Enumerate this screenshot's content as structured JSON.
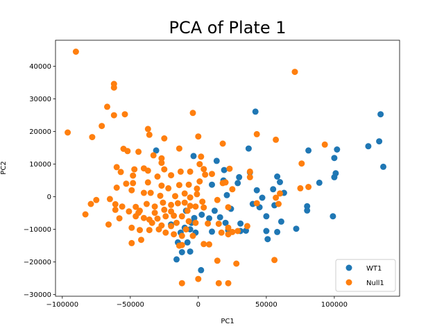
{
  "chart_data": {
    "type": "scatter",
    "title": "PCA of Plate 1",
    "xlabel": "PC1",
    "ylabel": "PC2",
    "xlim": [
      -105000,
      148000
    ],
    "ylim": [
      -30500,
      48000
    ],
    "xticks": [
      -100000,
      -50000,
      0,
      50000,
      100000
    ],
    "xtick_labels": [
      "−100000",
      "−50000",
      "0",
      "50000",
      "100000"
    ],
    "yticks": [
      -30000,
      -20000,
      -10000,
      0,
      10000,
      20000,
      30000,
      40000
    ],
    "ytick_labels": [
      "−30000",
      "−20000",
      "−10000",
      "0",
      "10000",
      "20000",
      "30000",
      "40000"
    ],
    "grid": false,
    "legend_position": "lower right",
    "series": [
      {
        "name": "WT1",
        "color": "#1f77b4",
        "points": [
          [
            -31000,
            14200
          ],
          [
            -3500,
            12500
          ],
          [
            13500,
            11000
          ],
          [
            19000,
            8200
          ],
          [
            30000,
            6000
          ],
          [
            37000,
            14800
          ],
          [
            42000,
            26100
          ],
          [
            38000,
            7500
          ],
          [
            29000,
            4200
          ],
          [
            18500,
            5000
          ],
          [
            43000,
            2000
          ],
          [
            58000,
            6200
          ],
          [
            60000,
            4500
          ],
          [
            63000,
            1200
          ],
          [
            55000,
            2300
          ],
          [
            47000,
            -300
          ],
          [
            40000,
            -2200
          ],
          [
            45000,
            -3200
          ],
          [
            56000,
            -2600
          ],
          [
            50000,
            -6000
          ],
          [
            61000,
            -7600
          ],
          [
            58000,
            -10800
          ],
          [
            50000,
            -10500
          ],
          [
            51000,
            -13000
          ],
          [
            72000,
            -9800
          ],
          [
            80000,
            -2900
          ],
          [
            80000,
            -4200
          ],
          [
            81000,
            14200
          ],
          [
            89000,
            4300
          ],
          [
            99000,
            -6000
          ],
          [
            100000,
            6000
          ],
          [
            101000,
            7200
          ],
          [
            100000,
            11900
          ],
          [
            102000,
            14500
          ],
          [
            125000,
            15500
          ],
          [
            133000,
            17000
          ],
          [
            136000,
            9200
          ],
          [
            134000,
            25300
          ],
          [
            16000,
            -6300
          ],
          [
            20000,
            -8000
          ],
          [
            24000,
            -3700
          ],
          [
            12000,
            -4300
          ],
          [
            31000,
            -8200
          ],
          [
            31000,
            -10500
          ],
          [
            35000,
            -10400
          ],
          [
            22000,
            -10300
          ],
          [
            8000,
            -6600
          ],
          [
            2500,
            -5500
          ],
          [
            -3000,
            -6500
          ],
          [
            -10000,
            -9500
          ],
          [
            -13000,
            -11000
          ],
          [
            -20000,
            -8500
          ],
          [
            -15000,
            -14000
          ],
          [
            -8000,
            -14000
          ],
          [
            -6000,
            -16800
          ],
          [
            -12000,
            -17000
          ],
          [
            -16000,
            -19200
          ],
          [
            2000,
            -22500
          ],
          [
            -6000,
            -10000
          ],
          [
            -2000,
            -11000
          ],
          [
            10000,
            -10700
          ],
          [
            21000,
            500
          ],
          [
            10000,
            3700
          ],
          [
            -5000,
            -8000
          ],
          [
            -9000,
            -4300
          ]
        ]
      },
      {
        "name": "Null1",
        "color": "#ff7f0e",
        "points": [
          [
            -90000,
            44500
          ],
          [
            -62000,
            34600
          ],
          [
            -62000,
            33500
          ],
          [
            -67000,
            27600
          ],
          [
            -62000,
            25000
          ],
          [
            -54000,
            25300
          ],
          [
            -71000,
            21700
          ],
          [
            -96000,
            19700
          ],
          [
            -78000,
            18300
          ],
          [
            -37000,
            20800
          ],
          [
            -36000,
            19000
          ],
          [
            -25000,
            17900
          ],
          [
            -4000,
            25700
          ],
          [
            0,
            18500
          ],
          [
            43000,
            19200
          ],
          [
            71000,
            38300
          ],
          [
            57000,
            17500
          ],
          [
            18000,
            16300
          ],
          [
            93000,
            16000
          ],
          [
            -55000,
            14700
          ],
          [
            -52000,
            14000
          ],
          [
            -44000,
            13800
          ],
          [
            -33000,
            12700
          ],
          [
            -27000,
            11800
          ],
          [
            -27000,
            10400
          ],
          [
            -14000,
            14800
          ],
          [
            2000,
            12300
          ],
          [
            1000,
            10000
          ],
          [
            4000,
            8500
          ],
          [
            10000,
            7000
          ],
          [
            -60000,
            9100
          ],
          [
            -57000,
            7600
          ],
          [
            -47000,
            8400
          ],
          [
            -48000,
            6500
          ],
          [
            -40000,
            8700
          ],
          [
            -37000,
            8000
          ],
          [
            -25000,
            8400
          ],
          [
            -30000,
            6200
          ],
          [
            -20000,
            6600
          ],
          [
            -13000,
            7700
          ],
          [
            -6000,
            7700
          ],
          [
            5000,
            6800
          ],
          [
            23000,
            8600
          ],
          [
            38000,
            7700
          ],
          [
            38000,
            6000
          ],
          [
            -53000,
            4000
          ],
          [
            -60000,
            2800
          ],
          [
            -49000,
            2000
          ],
          [
            -48000,
            4200
          ],
          [
            -37000,
            4400
          ],
          [
            -27000,
            3400
          ],
          [
            -22000,
            2600
          ],
          [
            -14000,
            3600
          ],
          [
            -7000,
            3700
          ],
          [
            -1000,
            2500
          ],
          [
            1000,
            4700
          ],
          [
            18000,
            4200
          ],
          [
            20000,
            4400
          ],
          [
            25000,
            2300
          ],
          [
            76000,
            10200
          ],
          [
            75000,
            2600
          ],
          [
            81000,
            3000
          ],
          [
            60000,
            1000
          ],
          [
            57000,
            -300
          ],
          [
            59000,
            -2200
          ],
          [
            43000,
            -2000
          ],
          [
            -75000,
            -1000
          ],
          [
            -65000,
            -700
          ],
          [
            -61000,
            -2300
          ],
          [
            -56000,
            -3000
          ],
          [
            -51000,
            -4500
          ],
          [
            -46000,
            -3100
          ],
          [
            -43000,
            -4300
          ],
          [
            -38000,
            -2200
          ],
          [
            -32000,
            -3000
          ],
          [
            -26000,
            -1800
          ],
          [
            -20000,
            -2500
          ],
          [
            -15000,
            -2000
          ],
          [
            -10000,
            -1800
          ],
          [
            -6000,
            -2800
          ],
          [
            -2000,
            -3000
          ],
          [
            4000,
            -3300
          ],
          [
            22000,
            -3200
          ],
          [
            -79000,
            -2200
          ],
          [
            -83000,
            -5400
          ],
          [
            -61000,
            -4000
          ],
          [
            -58000,
            -6600
          ],
          [
            -46000,
            -6000
          ],
          [
            -40000,
            -6500
          ],
          [
            -36000,
            -7000
          ],
          [
            -30000,
            -6700
          ],
          [
            -24000,
            -6000
          ],
          [
            -18000,
            -5800
          ],
          [
            -12000,
            -6000
          ],
          [
            -7000,
            -7500
          ],
          [
            -2000,
            -8000
          ],
          [
            7000,
            -8200
          ],
          [
            15000,
            -8300
          ],
          [
            22000,
            -9500
          ],
          [
            29000,
            -10500
          ],
          [
            36000,
            -9000
          ],
          [
            -66000,
            -8500
          ],
          [
            -49000,
            -9500
          ],
          [
            -43000,
            -10200
          ],
          [
            -36000,
            -10200
          ],
          [
            -29000,
            -10000
          ],
          [
            -24000,
            -11000
          ],
          [
            -18000,
            -11500
          ],
          [
            -12000,
            -12000
          ],
          [
            -4000,
            -12000
          ],
          [
            4000,
            -14500
          ],
          [
            8000,
            -14600
          ],
          [
            17000,
            -11000
          ],
          [
            22000,
            -11500
          ],
          [
            25000,
            -10800
          ],
          [
            -49000,
            -14200
          ],
          [
            -42000,
            -13200
          ],
          [
            -14000,
            -15000
          ],
          [
            -12000,
            -14800
          ],
          [
            14000,
            -19600
          ],
          [
            28000,
            -20500
          ],
          [
            56000,
            -19400
          ],
          [
            -12000,
            -26500
          ],
          [
            0,
            -25200
          ],
          [
            15000,
            -26500
          ],
          [
            22000,
            -26500
          ],
          [
            -34000,
            -8000
          ],
          [
            -27000,
            -8800
          ],
          [
            -20000,
            -9000
          ],
          [
            -32000,
            -4900
          ],
          [
            -44000,
            -4900
          ],
          [
            -20000,
            -4500
          ],
          [
            -8000,
            -4300
          ],
          [
            -28000,
            300
          ],
          [
            -17000,
            200
          ],
          [
            -6000,
            -200
          ],
          [
            -1000,
            800
          ],
          [
            -40000,
            1200
          ],
          [
            -35000,
            1200
          ],
          [
            -10000,
            1000
          ],
          [
            14000,
            -1000
          ],
          [
            -16000,
            -8000
          ],
          [
            -9000,
            -10000
          ],
          [
            -25000,
            -4000
          ],
          [
            3000,
            -1500
          ]
        ]
      }
    ]
  }
}
